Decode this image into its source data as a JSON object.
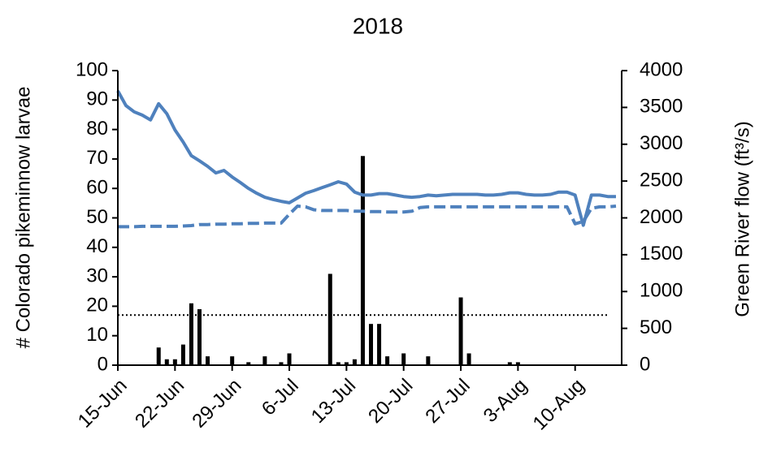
{
  "chart_data": {
    "type": "bar",
    "title": "2018",
    "ylabel": "# Colorado pikeminnow  larvae",
    "y2label": "Green River flow (ft³/s)",
    "categories": [
      "15-Jun",
      null,
      null,
      null,
      null,
      null,
      null,
      "22-Jun",
      null,
      null,
      null,
      null,
      null,
      null,
      "29-Jun",
      null,
      null,
      null,
      null,
      null,
      null,
      "6-Jul",
      null,
      null,
      null,
      null,
      null,
      null,
      "13-Jul",
      null,
      null,
      null,
      null,
      null,
      null,
      "20-Jul",
      null,
      null,
      null,
      null,
      null,
      null,
      "27-Jul",
      null,
      null,
      null,
      null,
      null,
      null,
      "3-Aug",
      null,
      null,
      null,
      null,
      null,
      null,
      "10-Aug",
      null,
      null,
      null,
      null,
      null
    ],
    "ylim": [
      0,
      100
    ],
    "yticks": [
      0,
      10,
      20,
      30,
      40,
      50,
      60,
      70,
      80,
      90,
      100
    ],
    "y2lim": [
      0,
      4000
    ],
    "y2ticks": [
      0,
      500,
      1000,
      1500,
      2000,
      2500,
      3000,
      3500,
      4000
    ],
    "series": [
      {
        "type": "bar",
        "color": "#000000",
        "values": [
          0,
          0,
          0,
          0,
          0,
          6,
          2,
          2,
          7,
          21,
          19,
          3,
          0,
          0,
          3,
          0,
          1,
          0,
          3,
          0,
          1,
          4,
          0,
          0,
          0,
          0,
          31,
          1,
          1,
          2,
          71,
          14,
          14,
          3,
          0,
          4,
          0,
          0,
          3,
          0,
          0,
          0,
          23,
          4,
          0,
          0,
          0,
          0,
          1,
          1,
          0,
          0,
          0,
          0,
          0,
          0,
          0,
          0,
          0,
          0,
          0,
          0
        ]
      },
      {
        "type": "line",
        "axis": "y2",
        "style": "solid",
        "color": "#4f81bd",
        "values": [
          3725,
          3525,
          3440,
          3395,
          3330,
          3550,
          3415,
          3195,
          3030,
          2845,
          2775,
          2700,
          2610,
          2645,
          2555,
          2480,
          2400,
          2335,
          2280,
          2250,
          2225,
          2205,
          2270,
          2335,
          2370,
          2410,
          2450,
          2490,
          2460,
          2350,
          2310,
          2310,
          2330,
          2330,
          2310,
          2290,
          2280,
          2290,
          2310,
          2300,
          2310,
          2320,
          2320,
          2320,
          2320,
          2310,
          2310,
          2320,
          2340,
          2340,
          2320,
          2310,
          2310,
          2320,
          2350,
          2350,
          2310,
          1900,
          2310,
          2310,
          2290,
          2290
        ]
      },
      {
        "type": "line",
        "axis": "y2",
        "style": "dash",
        "color": "#4f81bd",
        "values": [
          1880,
          1880,
          1880,
          1885,
          1885,
          1885,
          1885,
          1885,
          1890,
          1895,
          1910,
          1910,
          1915,
          1915,
          1920,
          1920,
          1925,
          1925,
          1930,
          1930,
          1930,
          2050,
          2160,
          2150,
          2110,
          2100,
          2100,
          2100,
          2100,
          2090,
          2090,
          2085,
          2085,
          2080,
          2080,
          2080,
          2090,
          2140,
          2150,
          2150,
          2150,
          2150,
          2150,
          2150,
          2150,
          2150,
          2150,
          2150,
          2150,
          2150,
          2150,
          2150,
          2150,
          2150,
          2150,
          2150,
          1920,
          1950,
          2130,
          2150,
          2150,
          2160
        ]
      },
      {
        "type": "line",
        "style": "dot",
        "color": "#000000",
        "values": [
          17,
          17,
          17,
          17,
          17,
          17,
          17,
          17,
          17,
          17,
          17,
          17,
          17,
          17,
          17,
          17,
          17,
          17,
          17,
          17,
          17,
          17,
          17,
          17,
          17,
          17,
          17,
          17,
          17,
          17,
          17,
          17,
          17,
          17,
          17,
          17,
          17,
          17,
          17,
          17,
          17,
          17,
          17,
          17,
          17,
          17,
          17,
          17,
          17,
          17,
          17,
          17,
          17,
          17,
          17,
          17,
          17,
          17,
          17,
          17,
          17,
          null
        ]
      }
    ]
  }
}
